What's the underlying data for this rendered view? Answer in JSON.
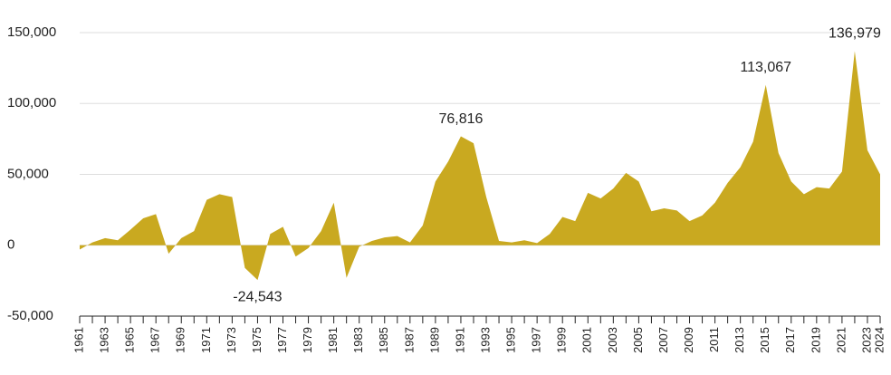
{
  "chart_data": {
    "type": "area",
    "color": "#c9a920",
    "grid": true,
    "categories": [
      "1961",
      null,
      "1963",
      null,
      "1965",
      null,
      "1967",
      null,
      "1969",
      null,
      "1971",
      null,
      "1973",
      null,
      "1975",
      null,
      "1977",
      null,
      "1979",
      null,
      "1981",
      null,
      "1983",
      null,
      "1985",
      null,
      "1987",
      null,
      "1989",
      null,
      "1991",
      null,
      "1993",
      null,
      "1995",
      null,
      "1997",
      null,
      "1999",
      null,
      "2001",
      null,
      "2003",
      null,
      "2005",
      null,
      "2007",
      null,
      "2009",
      null,
      "2011",
      null,
      "2013",
      null,
      "2015",
      null,
      "2017",
      null,
      "2019",
      null,
      "2021",
      null,
      "2023",
      "2024"
    ],
    "values": [
      -3000,
      2000,
      5000,
      3500,
      11000,
      19000,
      22000,
      -6000,
      5000,
      10000,
      32000,
      36000,
      34000,
      -16000,
      -24543,
      8000,
      13000,
      -8000,
      -2000,
      10000,
      30000,
      -23000,
      -1000,
      3000,
      5500,
      6500,
      2000,
      14000,
      45000,
      59000,
      76816,
      72000,
      34000,
      3000,
      2000,
      3500,
      1500,
      8000,
      20000,
      17000,
      37000,
      33000,
      40000,
      51000,
      45000,
      24000,
      26000,
      24500,
      17000,
      21000,
      30000,
      44000,
      55000,
      73000,
      113067,
      65000,
      45000,
      36000,
      41000,
      40000,
      52000,
      136979,
      67000,
      50000
    ],
    "value_labels": [
      null,
      null,
      null,
      null,
      null,
      null,
      null,
      null,
      null,
      null,
      null,
      null,
      null,
      null,
      "-24,543",
      null,
      null,
      null,
      null,
      null,
      null,
      null,
      null,
      null,
      null,
      null,
      null,
      null,
      null,
      null,
      "76,816",
      null,
      null,
      null,
      null,
      null,
      null,
      null,
      null,
      null,
      null,
      null,
      null,
      null,
      null,
      null,
      null,
      null,
      null,
      null,
      null,
      null,
      null,
      null,
      "113,067",
      null,
      null,
      null,
      null,
      null,
      null,
      "136,979",
      null,
      null
    ],
    "ylim": [
      -50000,
      150000
    ],
    "yticks": [
      {
        "value": -50000,
        "label": "-50,000"
      },
      0,
      {
        "value": 50000,
        "label": "50,000"
      },
      {
        "value": 100000,
        "label": "100,000"
      },
      {
        "value": 150000,
        "label": "150,000"
      }
    ]
  }
}
